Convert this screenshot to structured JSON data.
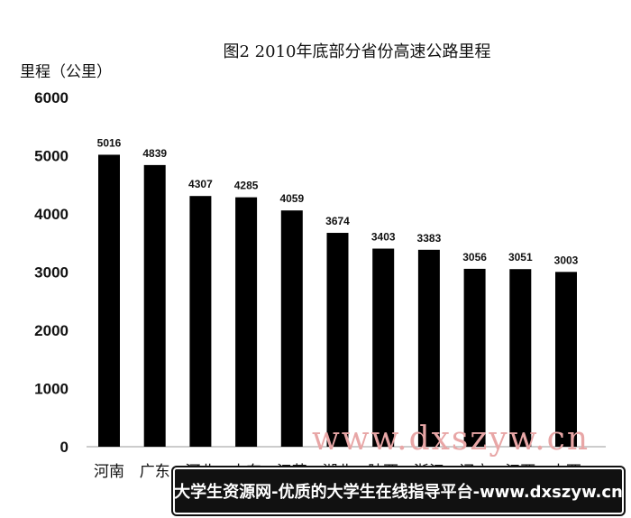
{
  "chart_data": {
    "type": "bar",
    "title": "图2 2010年底部分省份高速公路里程",
    "ylabel": "里程（公里）",
    "xlabel": "",
    "ylim": [
      0,
      6000
    ],
    "yticks": [
      0,
      1000,
      2000,
      3000,
      4000,
      5000,
      6000
    ],
    "categories": [
      "河南",
      "广东",
      "河北",
      "山东",
      "江苏",
      "湖北",
      "陕西",
      "浙江",
      "辽宁",
      "江西",
      "山西"
    ],
    "values": [
      5016,
      4839,
      4307,
      4285,
      4059,
      3674,
      3403,
      3383,
      3056,
      3051,
      3003
    ],
    "bar_color": "#000000",
    "grid": false,
    "legend": "none"
  },
  "watermark": {
    "text": "www.dxszyw.cn",
    "color": "#e8a6a6"
  },
  "banner": {
    "text": "大学生资源网-优质的大学生在线指导平台-www.dxszyw.cn"
  }
}
